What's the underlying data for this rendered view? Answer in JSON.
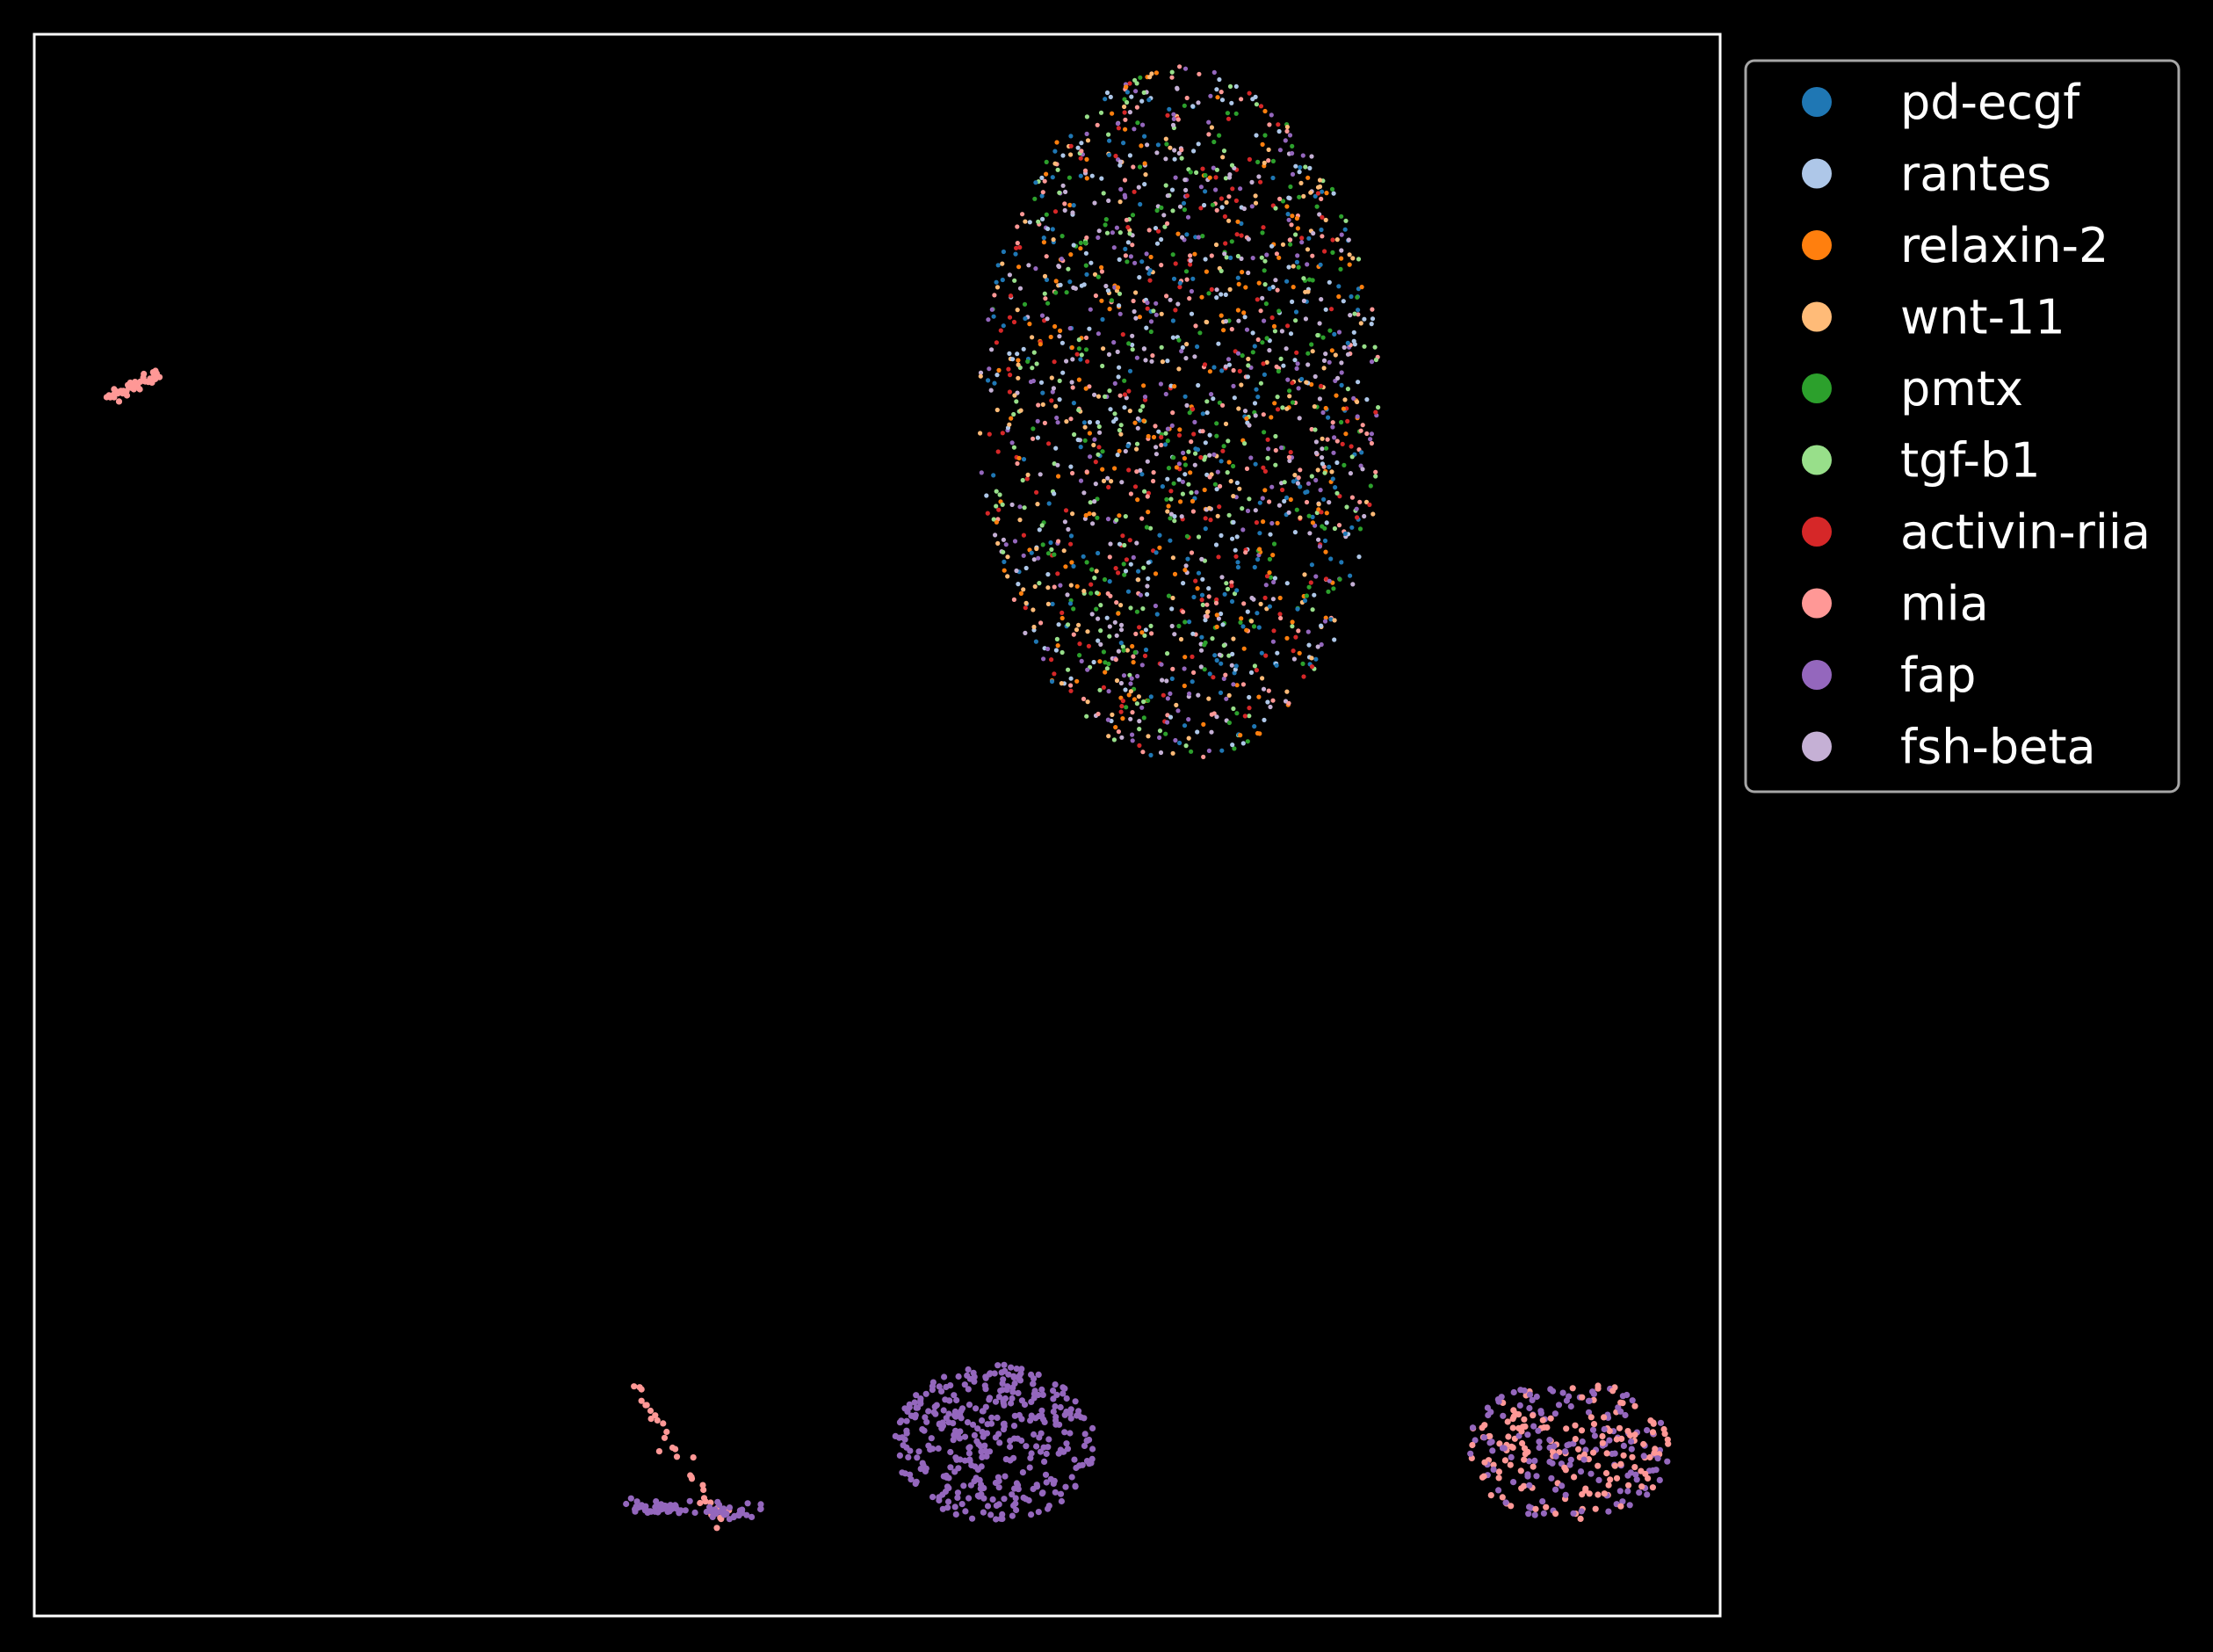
{
  "chart_data": {
    "type": "scatter",
    "title": "",
    "xlabel": "",
    "ylabel": "",
    "axes_ticks": false,
    "grid": false,
    "background": "#000000",
    "frame_color": "#ffffff",
    "legend_placement": "outside-top-right",
    "xlim": [
      0,
      100
    ],
    "ylim": [
      0,
      100
    ],
    "legend": [
      {
        "name": "pd-ecgf",
        "color": "#1f77b4"
      },
      {
        "name": "rantes",
        "color": "#aec7e8"
      },
      {
        "name": "relaxin-2",
        "color": "#ff7f0e"
      },
      {
        "name": "wnt-11",
        "color": "#ffbb78"
      },
      {
        "name": "pmtx",
        "color": "#2ca02c"
      },
      {
        "name": "tgf-b1",
        "color": "#98df8a"
      },
      {
        "name": "activin-riia",
        "color": "#d62728"
      },
      {
        "name": "mia",
        "color": "#ff9896"
      },
      {
        "name": "fap",
        "color": "#9467bd"
      },
      {
        "name": "fsh-beta",
        "color": "#c5b0d5"
      }
    ],
    "clusters": [
      {
        "kind": "blob",
        "center": [
          68,
          76
        ],
        "spread": [
          12,
          22
        ],
        "count": 1900,
        "series": [
          "pd-ecgf",
          "rantes",
          "relaxin-2",
          "wnt-11",
          "pmtx",
          "tgf-b1",
          "activin-riia",
          "mia",
          "fap",
          "fsh-beta"
        ]
      },
      {
        "kind": "line",
        "from": [
          4.5,
          77
        ],
        "to": [
          7.5,
          78.5
        ],
        "count": 40,
        "series": [
          "mia"
        ]
      },
      {
        "kind": "line",
        "from": [
          35.5,
          14.5
        ],
        "to": [
          41,
          5.5
        ],
        "count": 35,
        "series": [
          "mia"
        ]
      },
      {
        "kind": "line",
        "from": [
          35,
          7
        ],
        "to": [
          43,
          6.5
        ],
        "count": 70,
        "series": [
          "fap"
        ]
      },
      {
        "kind": "blob",
        "center": [
          57,
          11
        ],
        "spread": [
          6,
          5
        ],
        "count": 380,
        "series": [
          "fap"
        ]
      },
      {
        "kind": "blob",
        "center": [
          91,
          10.5
        ],
        "spread": [
          6,
          4.5
        ],
        "count": 300,
        "series": [
          "mia",
          "fap"
        ]
      }
    ]
  }
}
